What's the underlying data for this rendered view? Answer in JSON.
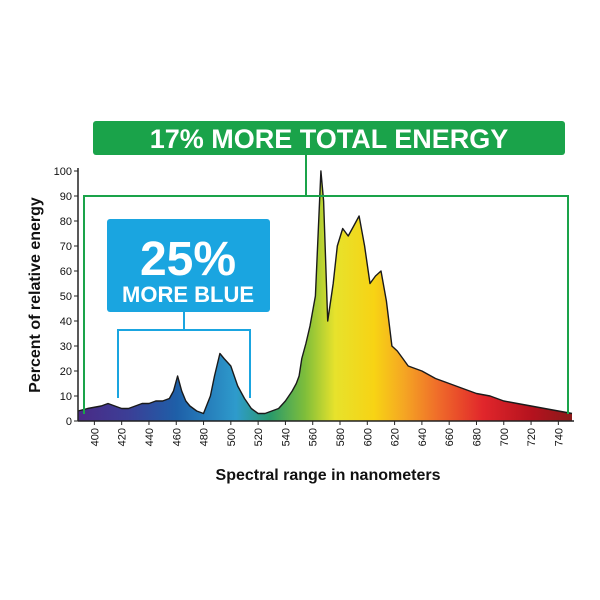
{
  "chart_data": {
    "type": "area",
    "title": "",
    "xlabel": "Spectral range in nanometers",
    "ylabel": "Percent of relative energy",
    "xlim": [
      388,
      750
    ],
    "ylim": [
      0,
      100
    ],
    "x_ticks": [
      400,
      420,
      440,
      460,
      480,
      500,
      520,
      540,
      560,
      580,
      600,
      620,
      640,
      660,
      680,
      700,
      720,
      740
    ],
    "y_ticks": [
      0,
      10,
      20,
      30,
      40,
      50,
      60,
      70,
      80,
      90,
      100
    ],
    "grid": false,
    "legend": "none",
    "series": [
      {
        "x": [
          388,
          395,
          405,
          410,
          415,
          420,
          425,
          430,
          435,
          440,
          445,
          450,
          455,
          458,
          461,
          464,
          467,
          470,
          475,
          480,
          485,
          488,
          492,
          495,
          500,
          505,
          510,
          515,
          520,
          525,
          530,
          535,
          540,
          545,
          548,
          550,
          552,
          555,
          558,
          562,
          566,
          568,
          571,
          575,
          578,
          582,
          586,
          590,
          594,
          598,
          602,
          606,
          610,
          614,
          618,
          622,
          626,
          630,
          640,
          650,
          660,
          670,
          680,
          690,
          700,
          710,
          720,
          730,
          740,
          750
        ],
        "y": [
          4,
          5,
          6,
          7,
          6,
          5,
          5,
          6,
          7,
          7,
          8,
          8,
          9,
          12,
          18,
          12,
          8,
          6,
          4,
          3,
          10,
          18,
          27,
          25,
          22,
          14,
          9,
          5,
          3,
          3,
          4,
          5,
          8,
          12,
          15,
          18,
          25,
          31,
          38,
          50,
          100,
          88,
          40,
          55,
          70,
          77,
          74,
          78,
          82,
          70,
          55,
          58,
          60,
          48,
          30,
          28,
          25,
          22,
          20,
          17,
          15,
          13,
          11,
          10,
          8,
          7,
          6,
          5,
          4,
          3
        ]
      }
    ],
    "annotations": [
      {
        "text": "17% MORE TOTAL ENERGY",
        "range": [
          388,
          750
        ],
        "color": "#1aa34a"
      },
      {
        "line1": "25%",
        "line2": "MORE BLUE",
        "range": [
          420,
          512
        ],
        "color": "#1aa5e0"
      }
    ]
  }
}
